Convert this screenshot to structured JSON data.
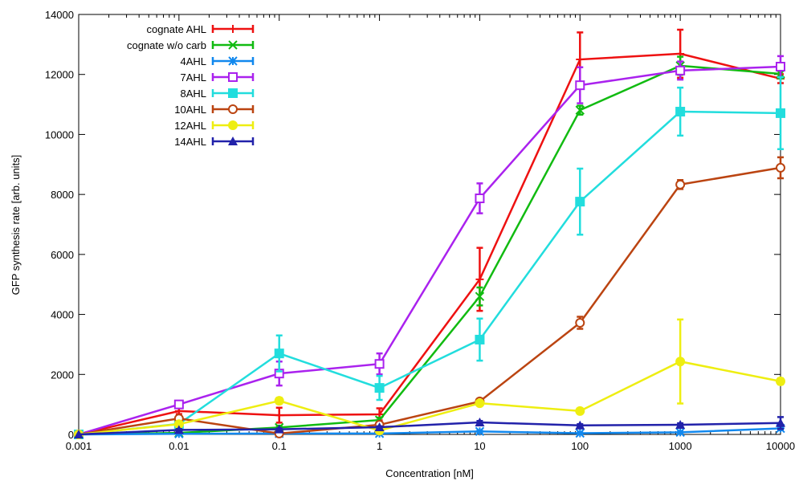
{
  "chart_data": {
    "type": "line",
    "xscale": "log",
    "xlabel": "Concentration [nM]",
    "ylabel": "GFP synthesis rate [arb. units]",
    "xlim": [
      0.001,
      10000
    ],
    "ylim": [
      0,
      14000
    ],
    "x": [
      0.001,
      0.01,
      0.1,
      1,
      10,
      100,
      1000,
      10000
    ],
    "xtick_labels": [
      "0.001",
      "0.01",
      "0.1",
      "1",
      "10",
      "100",
      "1000",
      "10000"
    ],
    "yticks": [
      0,
      2000,
      4000,
      6000,
      8000,
      10000,
      12000,
      14000
    ],
    "ytick_labels": [
      "0",
      "2000",
      "4000",
      "6000",
      "8000",
      "10000",
      "12000",
      "14000"
    ],
    "legend_position": "top-left",
    "series": [
      {
        "name": "cognate AHL",
        "color": "#ee1111",
        "marker": "plus",
        "values": [
          0,
          780,
          640,
          670,
          5170,
          12500,
          12690,
          11860
        ],
        "errors": [
          0,
          100,
          250,
          200,
          1050,
          900,
          800,
          150
        ]
      },
      {
        "name": "cognate w/o carb",
        "color": "#11bb11",
        "marker": "x",
        "values": [
          0,
          50,
          230,
          480,
          4600,
          10810,
          12290,
          12020
        ],
        "errors": [
          0,
          30,
          60,
          80,
          300,
          150,
          300,
          150
        ]
      },
      {
        "name": "4AHL",
        "color": "#1188ee",
        "marker": "star",
        "values": [
          0,
          20,
          30,
          30,
          100,
          40,
          70,
          200
        ],
        "errors": [
          0,
          10,
          10,
          10,
          30,
          20,
          20,
          60
        ]
      },
      {
        "name": "7AHL",
        "color": "#aa22ee",
        "marker": "square-open",
        "values": [
          0,
          1000,
          2030,
          2350,
          7870,
          11640,
          12130,
          12260
        ],
        "errors": [
          0,
          80,
          400,
          350,
          500,
          600,
          300,
          350
        ]
      },
      {
        "name": "8AHL",
        "color": "#22dddd",
        "marker": "square-filled",
        "values": [
          0,
          350,
          2700,
          1550,
          3160,
          7760,
          10760,
          10710
        ],
        "errors": [
          0,
          60,
          600,
          400,
          700,
          1100,
          800,
          1200
        ]
      },
      {
        "name": "10AHL",
        "color": "#bb4411",
        "marker": "circle-open",
        "values": [
          0,
          530,
          30,
          320,
          1100,
          3720,
          8330,
          8890
        ],
        "errors": [
          0,
          60,
          20,
          40,
          80,
          200,
          150,
          350
        ]
      },
      {
        "name": "12AHL",
        "color": "#eeee11",
        "marker": "circle-filled",
        "values": [
          0,
          340,
          1120,
          130,
          1040,
          780,
          2430,
          1770
        ],
        "errors": [
          0,
          40,
          100,
          40,
          80,
          80,
          1400,
          100
        ]
      },
      {
        "name": "14AHL",
        "color": "#2222aa",
        "marker": "triangle",
        "values": [
          0,
          150,
          170,
          240,
          400,
          300,
          320,
          380
        ],
        "errors": [
          0,
          30,
          30,
          30,
          50,
          40,
          50,
          200
        ]
      }
    ]
  }
}
